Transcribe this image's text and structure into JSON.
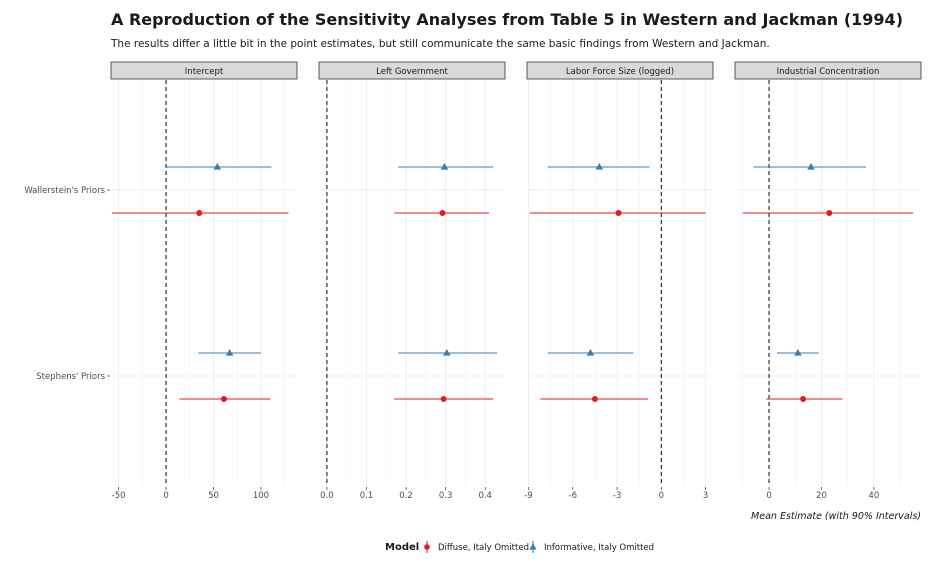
{
  "header": {
    "title": "A Reproduction of the Sensitivity Analyses from Table 5 in Western and Jackman (1994)",
    "subtitle": "The results differ a little bit in the point estimates, but still communicate the same basic findings from Western and Jackman."
  },
  "chart_data": {
    "type": "scatter",
    "subtype": "faceted point-range (coefficient plot)",
    "caption": "Mean Estimate (with 90% Intervals)",
    "categories": [
      "Wallerstein's Priors",
      "Stephens' Priors"
    ],
    "legend": {
      "title": "Model",
      "position": "bottom"
    },
    "series": [
      {
        "name": "Diffuse, Italy Omitted",
        "color": "#e41a1c",
        "shape": "circle"
      },
      {
        "name": "Informative, Italy Omitted",
        "color": "#377eb8",
        "shape": "triangle"
      }
    ],
    "reference_line": 0,
    "grid": true,
    "facets": [
      {
        "label": "Intercept",
        "xlim": [
          -58,
          138
        ],
        "ticks": [
          -50,
          0,
          50,
          100
        ],
        "tick_labels": [
          "-50",
          "0",
          "50",
          "100"
        ],
        "estimates": [
          {
            "category": "Wallerstein's Priors",
            "series": "Informative, Italy Omitted",
            "mean": 54,
            "low": 0,
            "high": 111
          },
          {
            "category": "Wallerstein's Priors",
            "series": "Diffuse, Italy Omitted",
            "mean": 35,
            "low": -57,
            "high": 129
          },
          {
            "category": "Stephens' Priors",
            "series": "Informative, Italy Omitted",
            "mean": 67,
            "low": 34,
            "high": 100
          },
          {
            "category": "Stephens' Priors",
            "series": "Diffuse, Italy Omitted",
            "mean": 61,
            "low": 14,
            "high": 110
          }
        ]
      },
      {
        "label": "Left Government",
        "xlim": [
          -0.02,
          0.45
        ],
        "ticks": [
          0,
          0.1,
          0.2,
          0.3,
          0.4
        ],
        "tick_labels": [
          "0.0",
          "0.1",
          "0.2",
          "0.3",
          "0.4"
        ],
        "estimates": [
          {
            "category": "Wallerstein's Priors",
            "series": "Informative, Italy Omitted",
            "mean": 0.297,
            "low": 0.18,
            "high": 0.42
          },
          {
            "category": "Wallerstein's Priors",
            "series": "Diffuse, Italy Omitted",
            "mean": 0.292,
            "low": 0.17,
            "high": 0.41
          },
          {
            "category": "Stephens' Priors",
            "series": "Informative, Italy Omitted",
            "mean": 0.303,
            "low": 0.18,
            "high": 0.43
          },
          {
            "category": "Stephens' Priors",
            "series": "Diffuse, Italy Omitted",
            "mean": 0.295,
            "low": 0.17,
            "high": 0.42
          }
        ]
      },
      {
        "label": "Labor Force Size (logged)",
        "xlim": [
          -9.1,
          3.5
        ],
        "ticks": [
          -9,
          -6,
          -3,
          0,
          3
        ],
        "tick_labels": [
          "-9",
          "-6",
          "-3",
          "0",
          "3"
        ],
        "estimates": [
          {
            "category": "Wallerstein's Priors",
            "series": "Informative, Italy Omitted",
            "mean": -4.2,
            "low": -7.7,
            "high": -0.8
          },
          {
            "category": "Wallerstein's Priors",
            "series": "Diffuse, Italy Omitted",
            "mean": -2.9,
            "low": -8.9,
            "high": 3.0
          },
          {
            "category": "Stephens' Priors",
            "series": "Informative, Italy Omitted",
            "mean": -4.8,
            "low": -7.7,
            "high": -1.9
          },
          {
            "category": "Stephens' Priors",
            "series": "Diffuse, Italy Omitted",
            "mean": -4.5,
            "low": -8.2,
            "high": -0.9
          }
        ]
      },
      {
        "label": "Industrial Concentration",
        "xlim": [
          -13,
          58
        ],
        "ticks": [
          0,
          20,
          40
        ],
        "tick_labels": [
          "0",
          "20",
          "40"
        ],
        "estimates": [
          {
            "category": "Wallerstein's Priors",
            "series": "Informative, Italy Omitted",
            "mean": 16,
            "low": -6,
            "high": 37
          },
          {
            "category": "Wallerstein's Priors",
            "series": "Diffuse, Italy Omitted",
            "mean": 23,
            "low": -10,
            "high": 55
          },
          {
            "category": "Stephens' Priors",
            "series": "Informative, Italy Omitted",
            "mean": 11,
            "low": 3,
            "high": 19
          },
          {
            "category": "Stephens' Priors",
            "series": "Diffuse, Italy Omitted",
            "mean": 13,
            "low": -1,
            "high": 28
          }
        ]
      }
    ]
  }
}
